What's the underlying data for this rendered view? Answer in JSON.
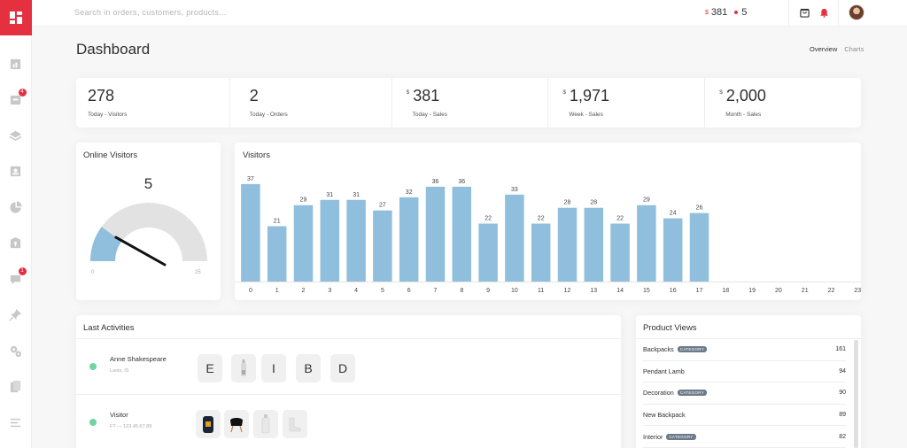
{
  "topbar": {
    "search_placeholder": "Search in orders, customers, products...",
    "sales_currency": "$",
    "sales_value": "381",
    "orders_value": "5"
  },
  "sidebar": {
    "items": [
      {
        "icon": "reports-icon"
      },
      {
        "icon": "orders-icon",
        "badge": "4"
      },
      {
        "icon": "layers-icon"
      },
      {
        "icon": "customers-icon"
      },
      {
        "icon": "pie-chart-icon"
      },
      {
        "icon": "security-icon"
      },
      {
        "icon": "messages-icon",
        "badge": "1"
      },
      {
        "icon": "pin-icon"
      },
      {
        "icon": "settings-icon"
      },
      {
        "icon": "pages-icon"
      },
      {
        "icon": "menu-icon"
      }
    ]
  },
  "header": {
    "title": "Dashboard",
    "tabs": [
      {
        "label": "Overview"
      },
      {
        "label": "Charts"
      }
    ]
  },
  "stats": [
    {
      "value": "278",
      "currency": "",
      "label": "Today - Visitors"
    },
    {
      "value": "2",
      "currency": "",
      "label": "Today - Orders"
    },
    {
      "value": "381",
      "currency": "$",
      "label": "Today - Sales"
    },
    {
      "value": "1,971",
      "currency": "$",
      "label": "Week - Sales"
    },
    {
      "value": "2,000",
      "currency": "$",
      "label": "Month - Sales"
    }
  ],
  "online_visitors": {
    "title": "Online Visitors",
    "value": "5",
    "min": "0",
    "max": "25"
  },
  "chart_data": {
    "type": "bar",
    "title": "Visitors",
    "categories": [
      "0",
      "1",
      "2",
      "3",
      "4",
      "5",
      "6",
      "7",
      "8",
      "9",
      "10",
      "11",
      "12",
      "13",
      "14",
      "15",
      "16",
      "17",
      "18",
      "19",
      "20",
      "21",
      "22",
      "23"
    ],
    "values": [
      37,
      21,
      29,
      31,
      31,
      27,
      32,
      36,
      36,
      22,
      33,
      22,
      28,
      28,
      22,
      29,
      24,
      26,
      null,
      null,
      null,
      null,
      null,
      null
    ],
    "ylim": [
      0,
      40
    ],
    "grid": false,
    "color": "#8fbfdc"
  },
  "activities": {
    "title": "Last Activities",
    "items": [
      {
        "name": "Anne Shakespeare",
        "sub": "Laois, IS",
        "tiles": [
          "E",
          "",
          "I",
          "B",
          "D"
        ]
      },
      {
        "name": "Visitor",
        "sub": "FT — 123.45.67.89",
        "tiles": [
          "",
          "",
          "",
          ""
        ]
      }
    ]
  },
  "product_views": {
    "title": "Product Views",
    "rows": [
      {
        "name": "Backpacks",
        "tag": "CATEGORY",
        "count": "161"
      },
      {
        "name": "Pendant Lamb",
        "tag": "",
        "count": "94"
      },
      {
        "name": "Decoration",
        "tag": "CATEGORY",
        "count": "90"
      },
      {
        "name": "New Backpack",
        "tag": "",
        "count": "89"
      },
      {
        "name": "Interior",
        "tag": "CATEGORY",
        "count": "82"
      }
    ]
  },
  "colors": {
    "accent": "#e53040",
    "bar": "#8fbfdc",
    "online_dot": "#6fd6a0"
  }
}
